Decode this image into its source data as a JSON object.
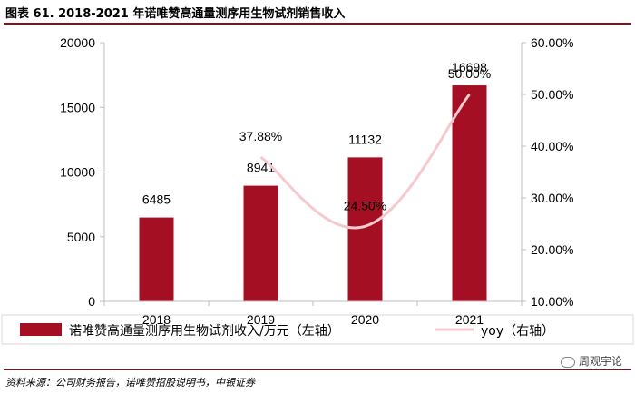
{
  "figure": {
    "title": "图表 61. 2018-2021 年诺唯赞高通量测序用生物试剂销售收入",
    "source": "资料来源：公司财务报告，诺唯赞招股说明书，中银证券",
    "watermark": "周观宇论"
  },
  "colors": {
    "bar": "#a50f23",
    "line": "#f5c9cd",
    "accent_rule": "#8b0e1e",
    "axis": "#bfbfbf"
  },
  "chart_data": {
    "type": "bar",
    "title": "图表 61. 2018-2021 年诺唯赞高通量测序用生物试剂销售收入",
    "categories": [
      "2018",
      "2019",
      "2020",
      "2021"
    ],
    "series": [
      {
        "name": "诺唯赞高通量测序用生物试剂收入/万元（左轴）",
        "type": "bar",
        "axis": "left",
        "values": [
          6485,
          8941,
          11132,
          16698
        ],
        "labels": [
          "6485",
          "8941",
          "11132",
          "16698"
        ]
      },
      {
        "name": "yoy（右轴）",
        "type": "line",
        "axis": "right",
        "values": [
          null,
          37.88,
          24.5,
          50.0
        ],
        "labels": [
          "",
          "37.88%",
          "24.50%",
          "50.00%"
        ]
      }
    ],
    "y_left": {
      "min": 0,
      "max": 20000,
      "ticks": [
        0,
        5000,
        10000,
        15000,
        20000
      ],
      "tick_labels": [
        "0",
        "5000",
        "10000",
        "15000",
        "20000"
      ]
    },
    "y_right": {
      "min": 10,
      "max": 60,
      "ticks": [
        10,
        20,
        30,
        40,
        50,
        60
      ],
      "tick_labels": [
        "10.00%",
        "20.00%",
        "30.00%",
        "40.00%",
        "50.00%",
        "60.00%"
      ]
    },
    "legend": {
      "position": "bottom",
      "items": [
        "诺唯赞高通量测序用生物试剂收入/万元（左轴）",
        "yoy（右轴）"
      ]
    },
    "grid": false
  }
}
